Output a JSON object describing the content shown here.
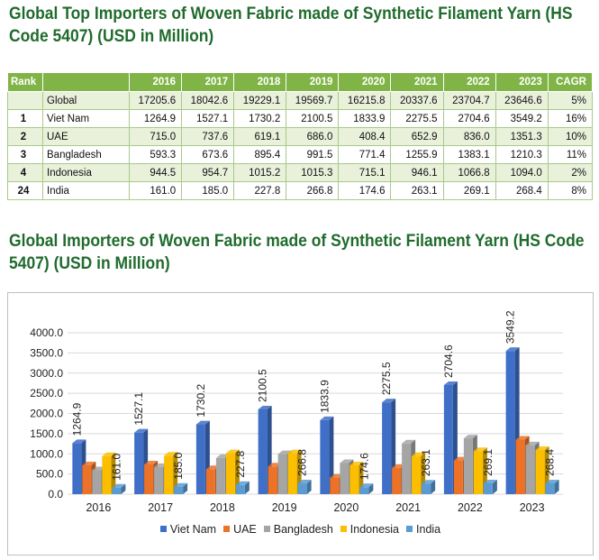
{
  "heading_table": "Global Top Importers of Woven Fabric made of Synthetic Filament Yarn (HS Code 5407) (USD in Million)",
  "heading_chart": "Global Importers of Woven Fabric made of Synthetic Filament Yarn (HS Code 5407) (USD in Million)",
  "table": {
    "headers": [
      "Rank",
      "",
      "2016",
      "2017",
      "2018",
      "2019",
      "2020",
      "2021",
      "2022",
      "2023",
      "CAGR"
    ],
    "rows": [
      [
        "",
        "Global",
        "17205.6",
        "18042.6",
        "19229.1",
        "19569.7",
        "16215.8",
        "20337.6",
        "23704.7",
        "23646.6",
        "5%"
      ],
      [
        "1",
        "Viet Nam",
        "1264.9",
        "1527.1",
        "1730.2",
        "2100.5",
        "1833.9",
        "2275.5",
        "2704.6",
        "3549.2",
        "16%"
      ],
      [
        "2",
        "UAE",
        "715.0",
        "737.6",
        "619.1",
        "686.0",
        "408.4",
        "652.9",
        "836.0",
        "1351.3",
        "10%"
      ],
      [
        "3",
        "Bangladesh",
        "593.3",
        "673.6",
        "895.4",
        "991.5",
        "771.4",
        "1255.9",
        "1383.1",
        "1210.3",
        "11%"
      ],
      [
        "4",
        "Indonesia",
        "944.5",
        "954.7",
        "1015.2",
        "1015.3",
        "715.1",
        "946.1",
        "1066.8",
        "1094.0",
        "2%"
      ],
      [
        "24",
        "India",
        "161.0",
        "185.0",
        "227.8",
        "266.8",
        "174.6",
        "263.1",
        "269.1",
        "268.4",
        "8%"
      ]
    ]
  },
  "chart_data": {
    "type": "bar",
    "categories": [
      "2016",
      "2017",
      "2018",
      "2019",
      "2020",
      "2021",
      "2022",
      "2023"
    ],
    "series": [
      {
        "name": "Viet Nam",
        "color": "#3f6fc6",
        "labeled": true,
        "values": [
          1264.9,
          1527.1,
          1730.2,
          2100.5,
          1833.9,
          2275.5,
          2704.6,
          3549.2
        ],
        "labels": [
          "1264.9",
          "1527.1",
          "1730.2",
          "2100.5",
          "1833.9",
          "2275.5",
          "2704.6",
          "3549.2"
        ]
      },
      {
        "name": "UAE",
        "color": "#ec7228",
        "labeled": false,
        "values": [
          715.0,
          737.6,
          619.1,
          686.0,
          408.4,
          652.9,
          836.0,
          1351.3
        ]
      },
      {
        "name": "Bangladesh",
        "color": "#a5a5a5",
        "labeled": false,
        "values": [
          593.3,
          673.6,
          895.4,
          991.5,
          771.4,
          1255.9,
          1383.1,
          1210.3
        ]
      },
      {
        "name": "Indonesia",
        "color": "#fcbf00",
        "labeled": false,
        "values": [
          944.5,
          954.7,
          1015.2,
          1015.3,
          715.1,
          946.1,
          1066.8,
          1094.0
        ]
      },
      {
        "name": "India",
        "color": "#5a9bd4",
        "labeled": true,
        "values": [
          161.0,
          185.0,
          227.8,
          266.8,
          174.6,
          263.1,
          269.1,
          268.4
        ],
        "labels": [
          "161.0",
          "185.0",
          "227.8",
          "266.8",
          "174.6",
          "263.1",
          "269.1",
          "268.4"
        ]
      }
    ],
    "yticks": [
      "0.0",
      "500.0",
      "1000.0",
      "1500.0",
      "2000.0",
      "2500.0",
      "3000.0",
      "3500.0",
      "4000.0"
    ],
    "ylim": [
      0,
      4000
    ],
    "grid": true,
    "legend_position": "bottom",
    "style": "3d-clustered-columns"
  }
}
